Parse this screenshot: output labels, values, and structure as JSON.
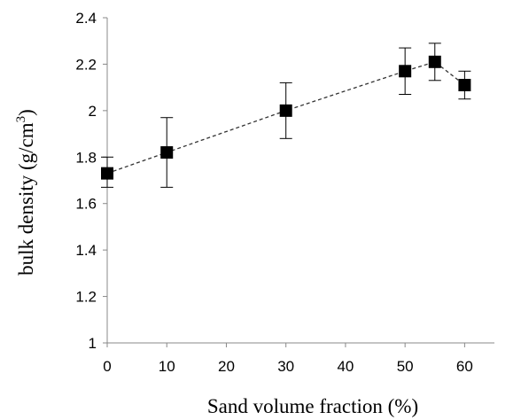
{
  "chart_data": {
    "type": "scatter",
    "title": "",
    "xlabel": "Sand volume fraction (%)",
    "ylabel_main": "bulk density (g/cm",
    "ylabel_sup": "3",
    "ylabel_end": ")",
    "xlim": [
      0,
      65
    ],
    "ylim": [
      1,
      2.4
    ],
    "x_ticks": [
      0,
      10,
      20,
      30,
      40,
      50,
      60
    ],
    "x_tick_labels": [
      "0",
      "10",
      "20",
      "30",
      "40",
      "50",
      "60"
    ],
    "y_ticks": [
      1,
      1.2,
      1.4,
      1.6,
      1.8,
      2,
      2.2,
      2.4
    ],
    "y_tick_labels": [
      "1",
      "1.2",
      "1.4",
      "1.6",
      "1.8",
      "2",
      "2.2",
      "2.4"
    ],
    "grid": false,
    "legend": "none",
    "line_style": "dashed",
    "marker": "square",
    "color": "#000000",
    "series": [
      {
        "points": [
          {
            "x": 0,
            "y": 1.73,
            "err_low": 1.67,
            "err_high": 1.8
          },
          {
            "x": 10,
            "y": 1.82,
            "err_low": 1.67,
            "err_high": 1.97
          },
          {
            "x": 30,
            "y": 2.0,
            "err_low": 1.88,
            "err_high": 2.12
          },
          {
            "x": 50,
            "y": 2.17,
            "err_low": 2.07,
            "err_high": 2.27
          },
          {
            "x": 55,
            "y": 2.21,
            "err_low": 2.13,
            "err_high": 2.29
          },
          {
            "x": 60,
            "y": 2.11,
            "err_low": 2.05,
            "err_high": 2.17
          }
        ]
      }
    ]
  }
}
